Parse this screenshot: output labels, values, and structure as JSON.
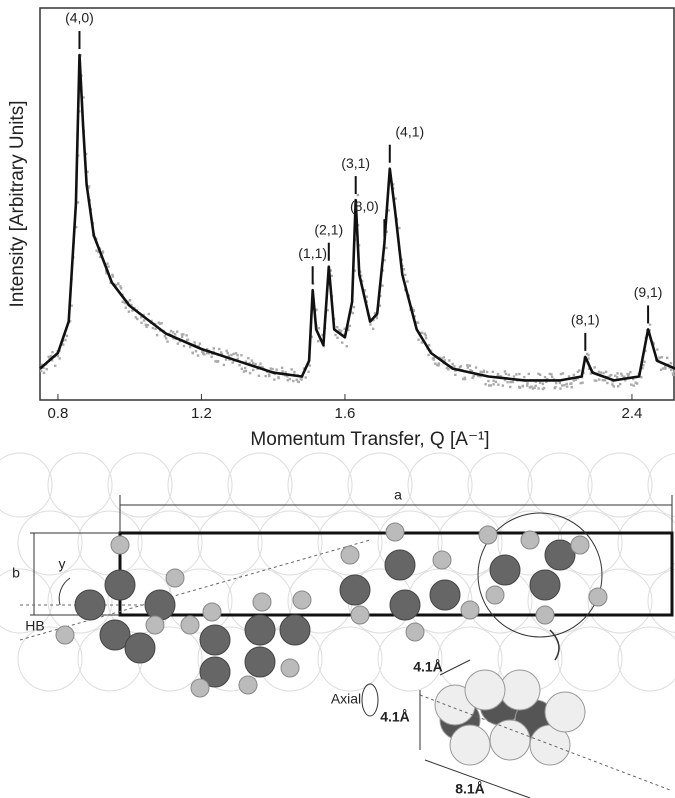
{
  "chart_data": {
    "type": "line",
    "x_label": "Momentum Transfer, Q [A⁻¹]",
    "y_label": "Intensity [Arbitrary Units]",
    "x": [
      0.75,
      0.8,
      0.83,
      0.85,
      0.86,
      0.87,
      0.88,
      0.9,
      0.95,
      1.0,
      1.1,
      1.2,
      1.3,
      1.4,
      1.48,
      1.5,
      1.51,
      1.52,
      1.54,
      1.555,
      1.57,
      1.6,
      1.62,
      1.63,
      1.64,
      1.67,
      1.69,
      1.71,
      1.725,
      1.74,
      1.76,
      1.8,
      1.84,
      1.9,
      2.0,
      2.1,
      2.2,
      2.26,
      2.27,
      2.29,
      2.35,
      2.42,
      2.445,
      2.47,
      2.52
    ],
    "values": [
      8,
      12,
      20,
      50,
      88,
      70,
      55,
      42,
      30,
      24,
      17,
      13,
      10,
      7,
      6,
      10,
      28,
      18,
      14,
      34,
      18,
      16,
      25,
      51,
      32,
      20,
      22,
      40,
      59,
      48,
      32,
      18,
      12,
      8,
      6,
      5,
      5,
      6,
      11,
      7,
      5,
      6,
      18,
      10,
      8
    ],
    "color": "#111111",
    "xlim": [
      0.75,
      2.52
    ],
    "ylim": [
      0,
      100
    ],
    "xticks": [
      0.8,
      1.2,
      1.6,
      2.4
    ],
    "annotations": [
      {
        "text": "(4,0)",
        "x": 0.86
      },
      {
        "text": "(1,1)",
        "x": 1.51
      },
      {
        "text": "(2,1)",
        "x": 1.555
      },
      {
        "text": "(3,1)",
        "x": 1.63
      },
      {
        "text": "(8,0)",
        "x": 1.71
      },
      {
        "text": "(4,1)",
        "x": 1.725
      },
      {
        "text": "(8,1)",
        "x": 2.27
      },
      {
        "text": "(9,1)",
        "x": 2.445
      }
    ]
  },
  "diagram": {
    "labels": {
      "a": "a",
      "b": "b",
      "y": "y",
      "hb": "HB",
      "axial": "Axial",
      "d1": "4.1Å",
      "d2": "4.1Å",
      "d3": "8.1Å"
    }
  }
}
